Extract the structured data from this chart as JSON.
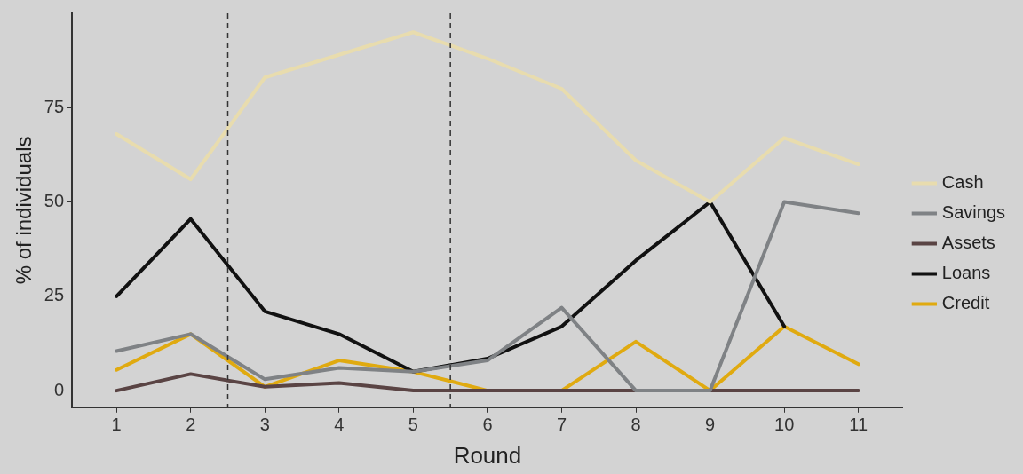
{
  "chart_data": {
    "type": "line",
    "xlabel": "Round",
    "ylabel": "% of individuals",
    "x": [
      1,
      2,
      3,
      4,
      5,
      6,
      7,
      8,
      9,
      10,
      11
    ],
    "xlim": [
      0.4,
      11.6
    ],
    "xticks": [
      1,
      2,
      3,
      4,
      5,
      6,
      7,
      8,
      9,
      10,
      11
    ],
    "ylim": [
      -4.4,
      100
    ],
    "yticks": [
      0,
      25,
      50,
      75
    ],
    "grid": false,
    "legend": "right",
    "marker": "none",
    "line_style": "solid",
    "series": [
      {
        "name": "Cash",
        "color": "#e8dcae",
        "values": [
          68,
          56,
          83,
          89,
          95,
          88,
          80,
          61,
          50,
          67,
          60
        ]
      },
      {
        "name": "Savings",
        "color": "#7f8285",
        "values": [
          10.5,
          15,
          3,
          6,
          5,
          8,
          22,
          0,
          0,
          50,
          47
        ]
      },
      {
        "name": "Assets",
        "color": "#5a4444",
        "values": [
          0,
          4.4,
          1,
          2,
          0,
          0,
          0,
          0,
          0,
          0,
          0
        ]
      },
      {
        "name": "Loans",
        "color": "#111111",
        "values": [
          25,
          45.5,
          21,
          15,
          5,
          8.5,
          17,
          34.5,
          50,
          17,
          null
        ]
      },
      {
        "name": "Credit",
        "color": "#e0aa10",
        "values": [
          5.5,
          15,
          1,
          8,
          5,
          0,
          0,
          13,
          0,
          17,
          7
        ]
      }
    ],
    "ref_lines": [
      {
        "axis": "x",
        "value": 2.5,
        "color": "#333333",
        "line_style": "dashed"
      },
      {
        "axis": "x",
        "value": 5.5,
        "color": "#333333",
        "line_style": "dashed"
      }
    ]
  }
}
